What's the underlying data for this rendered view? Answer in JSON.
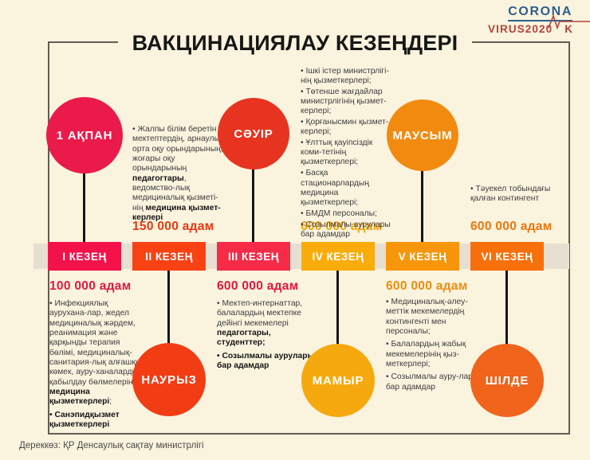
{
  "title": "ВАКЦИНАЦИЯЛАУ КЕЗЕҢДЕРІ",
  "footer": "Дереккөз: ҚР Денсаулық сақтау министрлігі",
  "logo": {
    "line1": "CORONA",
    "line2": "VIRUS2020",
    "suffix": "K",
    "blue": "#2c5f8f",
    "red": "#b5423a"
  },
  "colors": {
    "background": "#faf3de",
    "timeline_band": "#e7e0d2",
    "connector": "#161616",
    "frame": "#635c50",
    "body_text": "#3e3e3e",
    "bold_text": "#151515"
  },
  "stages": [
    {
      "label": "I КЕЗЕҢ",
      "month": "1 АҚПАН",
      "month_side": "top",
      "count": "100 000 адам",
      "box_color": "#f4124b",
      "circle_color": "#ea1a4a",
      "count_color": "#e8143f",
      "details": [
        {
          "segments": [
            {
              "t": "• Инфекциялық аурухана-лар, жедел медициналық жәрдем, реанимация және қарқынды терапия бөлімі, медициналық-санитария-лық алғашқы көмек, ауру-ханалардың қабылдау бөлмелерінің ",
              "b": false
            },
            {
              "t": "медицина қызметкерлері",
              "b": true
            },
            {
              "t": ";",
              "b": false
            }
          ]
        },
        {
          "segments": [
            {
              "t": "• Санэпидқызмет қызметкерлері",
              "b": true
            }
          ]
        }
      ]
    },
    {
      "label": "II КЕЗЕҢ",
      "month": "НАУРЫЗ",
      "month_side": "bottom",
      "count": "150 000 адам",
      "box_color": "#f94214",
      "circle_color": "#f23c14",
      "count_color": "#e8380f",
      "details": [
        {
          "segments": [
            {
              "t": "• Жалпы білім беретін мектептердің, арнаулы орта оқу орындарының, жоғары оқу орындарының ",
              "b": false
            },
            {
              "t": "педагогтары",
              "b": true
            },
            {
              "t": ", ведомство-лық медициналық қызметі-нің ",
              "b": false
            },
            {
              "t": "медицина қызмет-керлері",
              "b": true
            }
          ]
        }
      ]
    },
    {
      "label": "III КЕЗЕҢ",
      "month": "СӘУІР",
      "month_side": "top",
      "count": "600 000 адам",
      "box_color": "#f52b47",
      "circle_color": "#e73420",
      "count_color": "#e4143c",
      "details": [
        {
          "segments": [
            {
              "t": "• Мектеп-интернаттар, балалардың мектепке дейінгі мекемелері ",
              "b": false
            },
            {
              "t": "педагогтары, студенттер;",
              "b": true
            }
          ]
        },
        {
          "segments": [
            {
              "t": "• Созылмалы аурулары бар адамдар",
              "b": true
            }
          ]
        }
      ]
    },
    {
      "label": "IV КЕЗЕҢ",
      "month": "МАМЫР",
      "month_side": "bottom",
      "count": "600 000 адам",
      "box_color": "#f9ac0b",
      "circle_color": "#f6a90e",
      "count_color": "#f2a30a",
      "details": [
        {
          "segments": [
            {
              "t": "• Ішкі істер министрлігі-нің қызметкерлері;",
              "b": false
            }
          ]
        },
        {
          "segments": [
            {
              "t": "• Төтенше жағдайлар министрлігінің қызмет-керлері;",
              "b": false
            }
          ]
        },
        {
          "segments": [
            {
              "t": "• Қорғанысмин қызмет-керлері;",
              "b": false
            }
          ]
        },
        {
          "segments": [
            {
              "t": "• Ұлттық қауіпсіздік коми-тетінің қызметкерлері;",
              "b": false
            }
          ]
        },
        {
          "segments": [
            {
              "t": "• Басқа стационарлардың медицина қызметкерлері;",
              "b": false
            }
          ]
        },
        {
          "segments": [
            {
              "t": "• БМДМ персоналы;",
              "b": false
            }
          ]
        },
        {
          "segments": [
            {
              "t": "• Созылмалы аурулары бар адамдар",
              "b": false
            }
          ]
        }
      ]
    },
    {
      "label": "V КЕЗЕҢ",
      "month": "МАУСЫМ",
      "month_side": "top",
      "count": "600 000 адам",
      "box_color": "#f8960b",
      "circle_color": "#f18b10",
      "count_color": "#f08c0c",
      "details": [
        {
          "segments": [
            {
              "t": "• Медициналық-әлеу-меттік мекемелердің контингенті мен персоналы;",
              "b": false
            }
          ]
        },
        {
          "segments": [
            {
              "t": "• Балалардың жабық мекемелерінің қыз-меткерлері;",
              "b": false
            }
          ]
        },
        {
          "segments": [
            {
              "t": "• Созылмалы ауру-лары бар адамдар",
              "b": false
            }
          ]
        }
      ]
    },
    {
      "label": "VI КЕЗЕҢ",
      "month": "ШІЛДЕ",
      "month_side": "bottom",
      "count": "600 000 адам",
      "box_color": "#f8700b",
      "circle_color": "#f0641c",
      "count_color": "#ef750c",
      "details": [
        {
          "segments": [
            {
              "t": "• Тәуекел тобындағы қалған контингент",
              "b": false
            }
          ]
        }
      ]
    }
  ]
}
